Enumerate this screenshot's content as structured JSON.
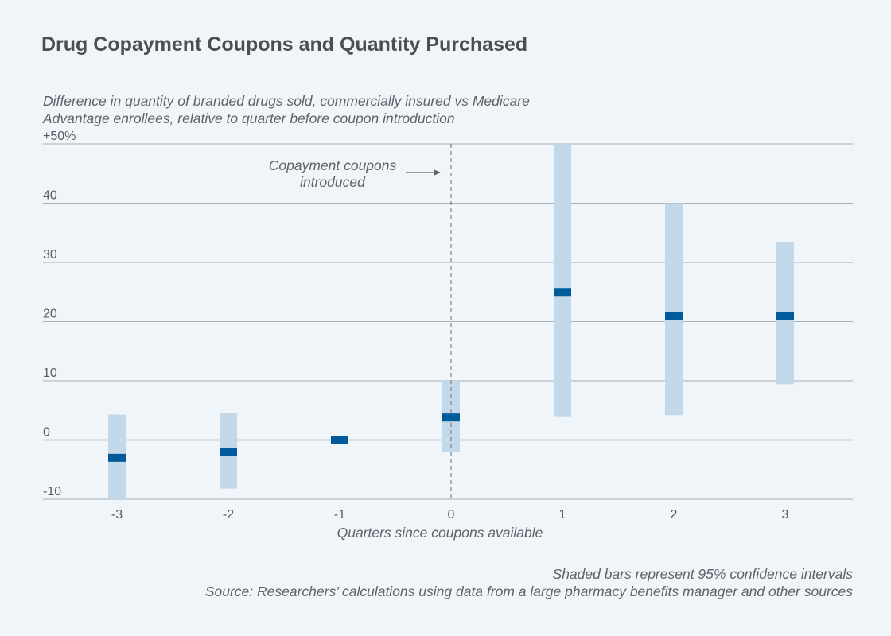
{
  "chart_data": {
    "type": "scatter",
    "title": "Drug Copayment Coupons and Quantity Purchased",
    "subtitle_lines": [
      "Difference in quantity of branded drugs sold, commercially insured vs Medicare",
      "Advantage enrollees, relative to quarter before coupon introduction"
    ],
    "xlabel": "Quarters since coupons available",
    "x_ticks": [
      "-3",
      "-2",
      "-1",
      "0",
      "1",
      "2",
      "3"
    ],
    "y_ticks": [
      "-10",
      "0",
      "10",
      "20",
      "30",
      "40",
      "+50%"
    ],
    "ylim": [
      -10,
      50
    ],
    "xlim": [
      -3.6,
      3.6
    ],
    "grid": true,
    "points": [
      {
        "x": -3,
        "estimate": -3,
        "ci_low": -10,
        "ci_high": 4.3
      },
      {
        "x": -2,
        "estimate": -2,
        "ci_low": -8.2,
        "ci_high": 4.5
      },
      {
        "x": -1,
        "estimate": 0,
        "ci_low": null,
        "ci_high": null
      },
      {
        "x": 0,
        "estimate": 3.8,
        "ci_low": -2,
        "ci_high": 10
      },
      {
        "x": 1,
        "estimate": 25,
        "ci_low": 4,
        "ci_high": 50
      },
      {
        "x": 2,
        "estimate": 21,
        "ci_low": 4.2,
        "ci_high": 40
      },
      {
        "x": 3,
        "estimate": 21,
        "ci_low": 9.4,
        "ci_high": 33.5
      }
    ],
    "annotation": {
      "lines": [
        "Copayment coupons",
        "introduced"
      ],
      "at_x": 0
    },
    "colors": {
      "estimate": "#005a9c",
      "ci": "#c3d9ea",
      "grid": "#a9b0b6",
      "zero": "#5f666c",
      "ref_line": "#7c838a"
    }
  },
  "notes": [
    "Shaded bars represent 95% confidence intervals",
    "Source: Researchers’ calculations using data from a large pharmacy benefits manager and other sources"
  ]
}
